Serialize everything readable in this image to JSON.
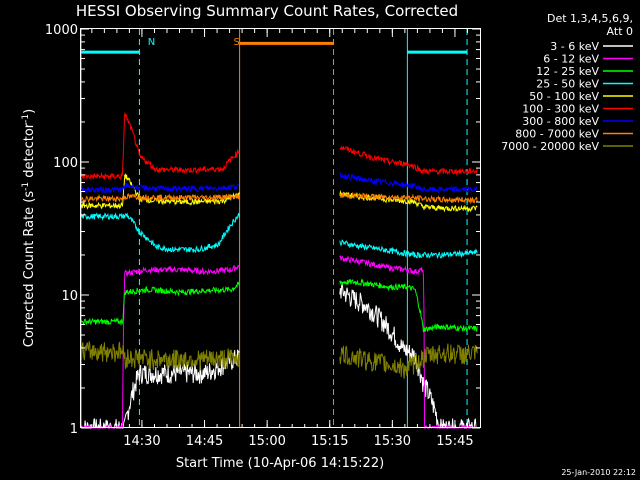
{
  "chart_data": {
    "type": "line",
    "title": "HESSI Observing Summary Count Rates, Corrected",
    "xlabel": "Start Time (10-Apr-06 14:15:22)",
    "ylabel": "Corrected Count Rate (s-1 detector-1)",
    "ylabel_parts": {
      "a": "Corrected Count Rate (s",
      "b": "-1",
      "c": " detector",
      "d": "-1",
      "e": ")"
    },
    "y_scale": "log",
    "ylim": [
      1,
      1000
    ],
    "y_ticks": [
      {
        "value": 1,
        "label": "1"
      },
      {
        "value": 10,
        "label": "10"
      },
      {
        "value": 100,
        "label": "100"
      },
      {
        "value": 1000,
        "label": "1000"
      }
    ],
    "xlim_minutes": [
      0,
      95.6
    ],
    "x_ticks": [
      {
        "value": 14.6,
        "label": "14:30"
      },
      {
        "value": 29.6,
        "label": "14:45"
      },
      {
        "value": 44.6,
        "label": "15:00"
      },
      {
        "value": 59.6,
        "label": "15:15"
      },
      {
        "value": 74.6,
        "label": "15:30"
      },
      {
        "value": 89.6,
        "label": "15:45"
      }
    ],
    "legend_header": [
      "Det 1,3,4,5,6,9,",
      "Att 0"
    ],
    "legend_placement": "right",
    "timestamp": "25-Jan-2010 22:12",
    "annotations": [
      {
        "text": "N",
        "x": 16.9,
        "color": "#00ffff"
      },
      {
        "text": "S",
        "x": 37.3,
        "color": "#ff8000"
      }
    ],
    "flags": [
      {
        "name": "night",
        "color": "#00ffff",
        "level": 670,
        "spans": [
          [
            0,
            14.0
          ],
          [
            78.2,
            92.5
          ]
        ],
        "edges_solid": [
          0,
          78.2
        ],
        "edges_dashed": [
          14.0,
          92.5
        ]
      },
      {
        "name": "saa",
        "color": "#ff8000",
        "level": 780,
        "spans": [
          [
            38.0,
            60.5
          ]
        ],
        "edges_solid": [
          38.0
        ],
        "edges_dashed": [
          60.5
        ]
      }
    ],
    "gap": [
      38.0,
      62.0
    ],
    "series": [
      {
        "name": "3 - 6 keV",
        "color": "#ffffff",
        "x": [
          0,
          10,
          10.5,
          14,
          22,
          30,
          37.8,
          62,
          65,
          68,
          71,
          74,
          77,
          80,
          82,
          86,
          92,
          95
        ],
        "y": [
          1,
          1,
          1,
          2.6,
          2.6,
          2.6,
          3.4,
          11,
          9.5,
          8.5,
          7,
          5.5,
          4,
          3.5,
          2.2,
          1,
          1,
          1
        ]
      },
      {
        "name": "6 - 12 keV",
        "color": "#ff00ff",
        "x": [
          0,
          10,
          10.5,
          16,
          24,
          30,
          36,
          37.8,
          62,
          66,
          70,
          74,
          78,
          80,
          82,
          82.3,
          95
        ],
        "y": [
          1,
          1,
          14.5,
          15.5,
          15.5,
          15,
          15.5,
          16.5,
          19,
          18,
          17,
          16,
          15.5,
          15,
          15.5,
          1,
          1
        ]
      },
      {
        "name": "12 - 25 keV",
        "color": "#00ff00",
        "x": [
          0,
          10,
          10.5,
          16,
          24,
          30,
          36,
          37.8,
          62,
          66,
          70,
          74,
          78,
          80,
          82,
          86,
          92,
          95
        ],
        "y": [
          6.3,
          6.3,
          10.5,
          11,
          10.5,
          10.8,
          11,
          12,
          12.5,
          12.5,
          12,
          11.5,
          11.5,
          11,
          5.5,
          5.8,
          5.6,
          5.6
        ]
      },
      {
        "name": "25 - 50 keV",
        "color": "#00ffff",
        "x": [
          0,
          10,
          11,
          14,
          18,
          22,
          28,
          33,
          37.8,
          62,
          66,
          70,
          74,
          78,
          80,
          82,
          86,
          92,
          95
        ],
        "y": [
          39,
          39,
          40,
          30,
          23,
          22,
          22,
          24,
          40,
          25,
          23.5,
          22.5,
          21.5,
          20.5,
          20,
          20,
          20,
          20.5,
          21
        ]
      },
      {
        "name": "50 - 100 keV",
        "color": "#ffff00",
        "x": [
          0,
          10,
          10.5,
          14,
          18,
          26,
          34,
          37.8,
          62,
          66,
          70,
          74,
          78,
          80,
          82,
          86,
          92,
          95
        ],
        "y": [
          47,
          47,
          80,
          53,
          51,
          50,
          51,
          57,
          58,
          55,
          54,
          52,
          51,
          50,
          46,
          45,
          45,
          45
        ]
      },
      {
        "name": "100 - 300 keV",
        "color": "#ff0000",
        "x": [
          0,
          10,
          10.5,
          14,
          18,
          26,
          34,
          37.8,
          62,
          66,
          70,
          74,
          78,
          80,
          82,
          86,
          92,
          95
        ],
        "y": [
          78,
          78,
          230,
          110,
          88,
          87,
          89,
          120,
          130,
          118,
          108,
          100,
          97,
          92,
          85,
          85,
          85,
          86
        ]
      },
      {
        "name": "300 - 800 keV",
        "color": "#0000ff",
        "x": [
          0,
          10,
          10.5,
          14,
          20,
          28,
          34,
          37.8,
          62,
          66,
          70,
          74,
          78,
          80,
          82,
          86,
          92,
          95
        ],
        "y": [
          62,
          62,
          67,
          64,
          63,
          63,
          64,
          66,
          80,
          75,
          72,
          70,
          67,
          66,
          62,
          62,
          62,
          62
        ]
      },
      {
        "name": "800 - 7000 keV",
        "color": "#ff8000",
        "x": [
          0,
          10,
          10.5,
          20,
          30,
          37.8,
          62,
          70,
          78,
          82,
          86,
          92,
          95
        ],
        "y": [
          53,
          53,
          55,
          54,
          54,
          55,
          56,
          55,
          54,
          53,
          52,
          52,
          52
        ]
      },
      {
        "name": "7000 - 20000 keV",
        "color": "#808000",
        "x": [
          0,
          10,
          10.5,
          20,
          30,
          37.8,
          62,
          66,
          70,
          74,
          78,
          82,
          86,
          92,
          95
        ],
        "y": [
          3.8,
          3.8,
          3.4,
          3.3,
          3.3,
          3.4,
          3.6,
          3.4,
          3.2,
          3.0,
          2.8,
          3.4,
          3.7,
          3.6,
          3.6
        ]
      }
    ]
  }
}
